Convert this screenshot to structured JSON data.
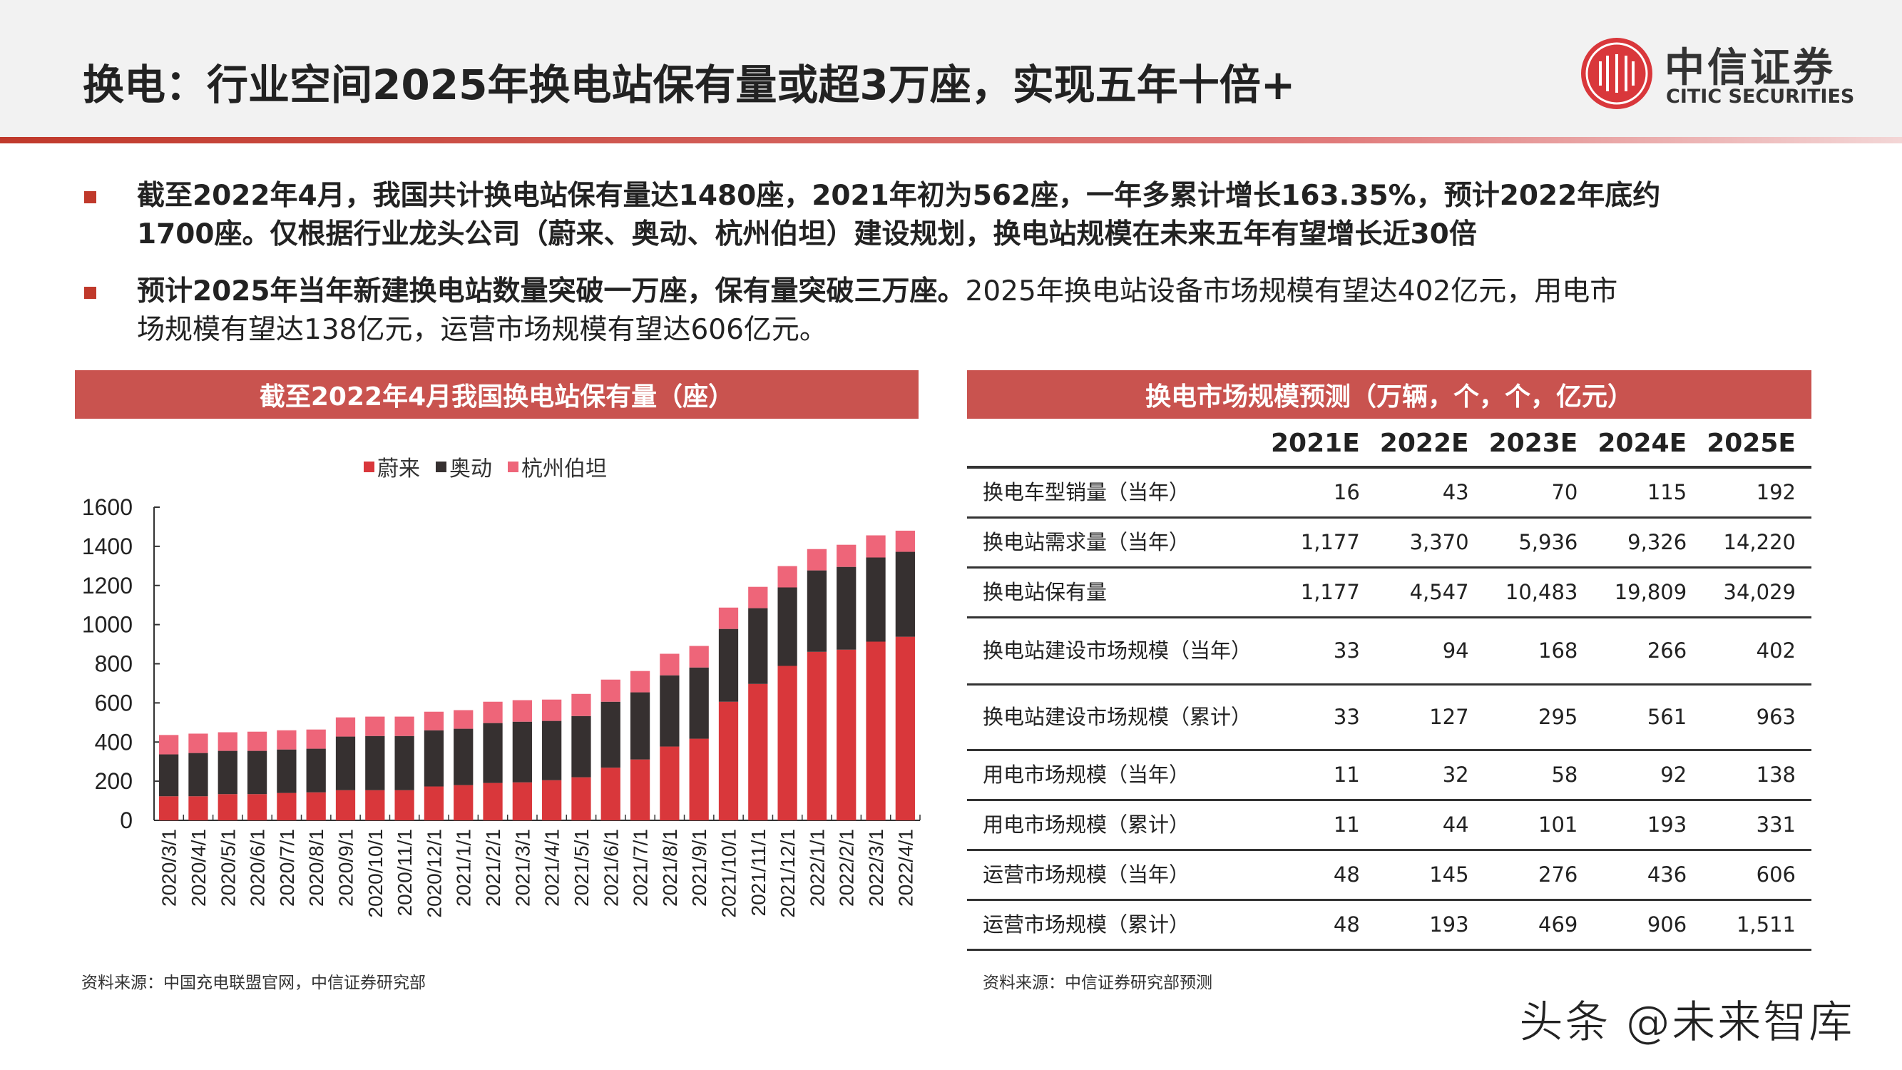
{
  "title": "换电：行业空间2025年换电站保有量或超3万座，实现五年十倍+",
  "logo": {
    "cn": "中信证券",
    "en": "CITIC SECURITIES",
    "brand_color": "#d9373b"
  },
  "bullets": [
    {
      "line1": "截至2022年4月，我国共计换电站保有量达1480座，2021年初为562座，一年多累计增长163.35%，预计2022年底约",
      "line2": "1700座。仅根据行业龙头公司（蔚来、奥动、杭州伯坦）建设规划，换电站规模在未来五年有望增长近30倍"
    },
    {
      "bold": "预计2025年当年新建换电站数量突破一万座，保有量突破三万座。",
      "rest": "2025年换电站设备市场规模有望达402亿元，用电市",
      "line2": "场规模有望达138亿元，运营市场规模有望达606亿元。"
    }
  ],
  "left_panel": {
    "title": "截至2022年4月我国换电站保有量（座）",
    "source": "资料来源：中国充电联盟官网，中信证券研究部"
  },
  "chart_data": {
    "type": "bar",
    "stacked": true,
    "title": "截至2022年4月我国换电站保有量（座）",
    "xlabel": "",
    "ylabel": "",
    "ylim": [
      0,
      1600
    ],
    "yticks": [
      0,
      200,
      400,
      600,
      800,
      1000,
      1200,
      1400,
      1600
    ],
    "grid": false,
    "legend_position": "top",
    "categories": [
      "2020/3/1",
      "2020/4/1",
      "2020/5/1",
      "2020/6/1",
      "2020/7/1",
      "2020/8/1",
      "2020/9/1",
      "2020/10/1",
      "2020/11/1",
      "2020/12/1",
      "2021/1/1",
      "2021/2/1",
      "2021/3/1",
      "2021/4/1",
      "2021/5/1",
      "2021/6/1",
      "2021/7/1",
      "2021/8/1",
      "2021/9/1",
      "2021/10/1",
      "2021/11/1",
      "2021/12/1",
      "2022/1/1",
      "2022/2/1",
      "2022/3/1",
      "2022/4/1"
    ],
    "series": [
      {
        "name": "蔚来",
        "color": "#d9373b",
        "values": [
          123,
          123,
          134,
          134,
          140,
          143,
          154,
          154,
          154,
          173,
          180,
          191,
          194,
          205,
          220,
          269,
          311,
          377,
          417,
          606,
          697,
          789,
          861,
          872,
          913,
          938
        ]
      },
      {
        "name": "奥动",
        "color": "#363030",
        "values": [
          214,
          221,
          221,
          221,
          222,
          223,
          274,
          277,
          277,
          287,
          288,
          306,
          310,
          303,
          313,
          337,
          343,
          364,
          364,
          372,
          387,
          401,
          416,
          423,
          430,
          434
        ]
      },
      {
        "name": "杭州伯坦",
        "color": "#ee6579",
        "values": [
          99,
          99,
          95,
          98,
          98,
          98,
          98,
          99,
          99,
          95,
          95,
          109,
          110,
          109,
          113,
          113,
          109,
          110,
          110,
          109,
          109,
          109,
          109,
          113,
          113,
          108
        ]
      }
    ]
  },
  "right_panel": {
    "title": "换电市场规模预测（万辆，个，个，亿元）",
    "source": "资料来源：中信证券研究部预测",
    "columns": [
      "",
      "2021E",
      "2022E",
      "2023E",
      "2024E",
      "2025E"
    ],
    "rows": [
      {
        "label": "换电车型销量（当年）",
        "values": [
          "16",
          "43",
          "70",
          "115",
          "192"
        ]
      },
      {
        "label": "换电站需求量（当年）",
        "values": [
          "1,177",
          "3,370",
          "5,936",
          "9,326",
          "14,220"
        ]
      },
      {
        "label": "换电站保有量",
        "values": [
          "1,177",
          "4,547",
          "10,483",
          "19,809",
          "34,029"
        ]
      },
      {
        "label": "换电站建设市场规模（当年）",
        "values": [
          "33",
          "94",
          "168",
          "266",
          "402"
        ]
      },
      {
        "label": "换电站建设市场规模（累计）",
        "values": [
          "33",
          "127",
          "295",
          "561",
          "963"
        ]
      },
      {
        "label": "用电市场规模（当年）",
        "values": [
          "11",
          "32",
          "58",
          "92",
          "138"
        ]
      },
      {
        "label": "用电市场规模（累计）",
        "values": [
          "11",
          "44",
          "101",
          "193",
          "331"
        ]
      },
      {
        "label": "运营市场规模（当年）",
        "values": [
          "48",
          "145",
          "276",
          "436",
          "606"
        ]
      },
      {
        "label": "运营市场规模（累计）",
        "values": [
          "48",
          "193",
          "469",
          "906",
          "1,511"
        ]
      }
    ]
  },
  "watermark": "头条 @未来智库"
}
